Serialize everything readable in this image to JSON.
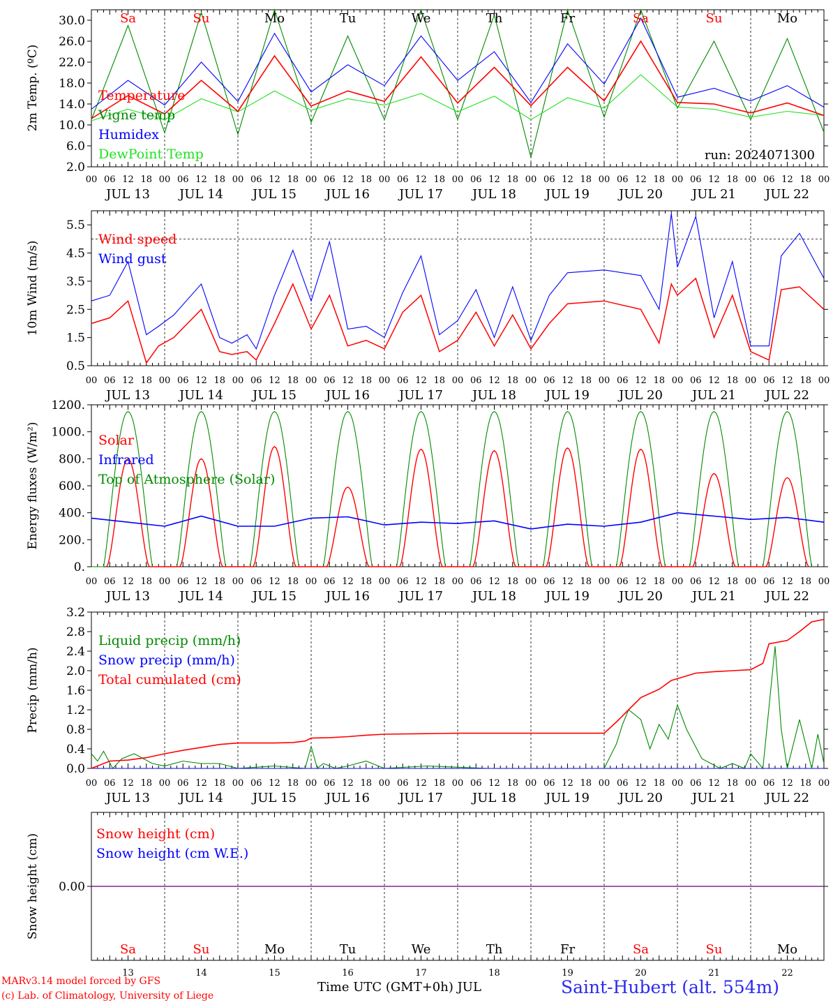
{
  "colors": {
    "temperature": "#ff0000",
    "vigne_temp": "#008a00",
    "humidex": "#0000ff",
    "dewpoint": "#22e022",
    "wind_speed": "#ff0000",
    "wind_gust": "#0000ff",
    "solar": "#ff0000",
    "infrared": "#0000ff",
    "toa_solar": "#008a00",
    "liquid_precip": "#008a00",
    "snow_precip": "#0000ff",
    "total_cumulated": "#ff0000",
    "snow_height": "#ff0000",
    "snow_height_we": "#0000ff",
    "weekend_label": "#ff0000",
    "weekday_label": "#000000",
    "station": "#2a2af0"
  },
  "days": [
    "Sa",
    "Su",
    "Mo",
    "Tu",
    "We",
    "Th",
    "Fr",
    "Sa",
    "Su",
    "Mo"
  ],
  "weekend_flags": [
    true,
    true,
    false,
    false,
    false,
    false,
    false,
    true,
    true,
    false
  ],
  "dates": [
    "JUL 13",
    "JUL 14",
    "JUL 15",
    "JUL 16",
    "JUL 17",
    "JUL 18",
    "JUL 19",
    "JUL 20",
    "JUL 21",
    "JUL 22"
  ],
  "date_numbers": [
    "13",
    "14",
    "15",
    "16",
    "17",
    "18",
    "19",
    "20",
    "21",
    "22"
  ],
  "hour_ticks": [
    "00",
    "06",
    "12",
    "18"
  ],
  "run_label": "run: 2024071300",
  "footer": {
    "credit_line1": "MARv3.14 model forced by GFS",
    "credit_line2": "(c) Lab. of Climatology, University of Liege",
    "x_title": "Time UTC (GMT+0h) JUL",
    "station": "Saint-Hubert (alt. 554m)"
  },
  "chart_data": [
    {
      "type": "line",
      "x_unit": "hours since JUL 13 00 UTC",
      "ylabel": "2m Temp. (ºC)",
      "ylim": [
        2,
        32
      ],
      "yticks": [
        "2.0",
        "6.0",
        "10.0",
        "14.0",
        "18.0",
        "22.0",
        "26.0",
        "30.0"
      ],
      "grid": false,
      "legend": "top-left",
      "series": [
        {
          "name": "Temperature",
          "x": [
            0,
            12,
            24,
            36,
            48,
            60,
            72,
            84,
            96,
            108,
            120,
            132,
            144,
            156,
            168,
            180,
            192,
            204,
            216,
            228,
            240
          ],
          "values": [
            11.2,
            15.6,
            12.1,
            18.5,
            12.6,
            23.2,
            13.6,
            16.5,
            14.5,
            23.0,
            14.2,
            21.0,
            13.7,
            21.0,
            14.6,
            26.0,
            14.3,
            14.0,
            12.3,
            14.2,
            11.8
          ]
        },
        {
          "name": "Vigne temp",
          "x": [
            0,
            12,
            24,
            36,
            48,
            60,
            72,
            84,
            96,
            108,
            120,
            132,
            144,
            156,
            168,
            180,
            192,
            204,
            216,
            228,
            240
          ],
          "values": [
            11.0,
            29.0,
            8.5,
            31.5,
            8.2,
            32.0,
            10.5,
            27.0,
            11.0,
            32.0,
            11.0,
            31.0,
            3.8,
            32.0,
            11.5,
            32.0,
            13.2,
            26.0,
            11.0,
            26.5,
            8.6
          ]
        },
        {
          "name": "Humidex",
          "x": [
            0,
            12,
            24,
            36,
            48,
            60,
            72,
            84,
            96,
            108,
            120,
            132,
            144,
            156,
            168,
            180,
            192,
            204,
            216,
            228,
            240
          ],
          "values": [
            13.0,
            18.5,
            13.8,
            22.0,
            14.5,
            27.5,
            16.3,
            21.5,
            17.5,
            27.0,
            18.5,
            24.0,
            14.3,
            25.5,
            17.8,
            30.4,
            15.3,
            17.0,
            14.6,
            17.5,
            13.4
          ]
        },
        {
          "name": "DewPoint Temp",
          "x": [
            0,
            12,
            24,
            36,
            48,
            60,
            72,
            84,
            96,
            108,
            120,
            132,
            144,
            156,
            168,
            180,
            192,
            204,
            216,
            228,
            240
          ],
          "values": [
            10.8,
            13.0,
            11.0,
            15.0,
            12.5,
            16.5,
            12.8,
            15.0,
            13.8,
            16.0,
            12.5,
            15.5,
            11.0,
            15.2,
            13.2,
            19.6,
            13.4,
            13.0,
            11.5,
            12.6,
            11.8
          ]
        }
      ]
    },
    {
      "type": "line",
      "x_unit": "hours since JUL 13 00 UTC",
      "ylabel": "10m Wind (m/s)",
      "ylim": [
        0.5,
        6.0
      ],
      "yticks": [
        "0.5",
        "1.5",
        "2.5",
        "3.5",
        "4.5",
        "5.5"
      ],
      "reference_line": 5.0,
      "legend": "top-left",
      "series": [
        {
          "name": "Wind speed",
          "x": [
            0,
            6,
            12,
            18,
            22,
            27,
            36,
            42,
            46,
            51,
            54,
            60,
            66,
            72,
            78,
            84,
            90,
            96,
            102,
            108,
            114,
            120,
            126,
            132,
            138,
            144,
            150,
            156,
            168,
            180,
            186,
            190,
            192,
            198,
            204,
            210,
            216,
            222,
            226,
            232,
            240
          ],
          "values": [
            2.0,
            2.2,
            2.8,
            0.6,
            1.2,
            1.5,
            2.5,
            1.0,
            0.9,
            1.0,
            0.7,
            2.0,
            3.4,
            1.8,
            3.0,
            1.2,
            1.4,
            1.1,
            2.4,
            3.0,
            1.0,
            1.4,
            2.4,
            1.2,
            2.3,
            1.1,
            2.0,
            2.7,
            2.8,
            2.5,
            1.3,
            3.4,
            3.0,
            3.6,
            1.5,
            3.0,
            1.0,
            0.7,
            3.2,
            3.3,
            2.5
          ]
        },
        {
          "name": "Wind gust",
          "x": [
            0,
            6,
            12,
            18,
            22,
            27,
            36,
            42,
            46,
            51,
            54,
            60,
            66,
            72,
            78,
            84,
            90,
            96,
            102,
            108,
            114,
            120,
            126,
            132,
            138,
            144,
            150,
            156,
            168,
            180,
            186,
            190,
            192,
            198,
            204,
            210,
            216,
            222,
            226,
            232,
            240
          ],
          "values": [
            2.8,
            3.0,
            4.2,
            1.6,
            1.9,
            2.3,
            3.4,
            1.5,
            1.3,
            1.6,
            1.1,
            3.0,
            4.6,
            2.8,
            4.9,
            1.8,
            1.9,
            1.5,
            3.1,
            4.4,
            1.6,
            2.1,
            3.2,
            1.5,
            3.3,
            1.4,
            3.0,
            3.8,
            3.9,
            3.7,
            2.5,
            5.9,
            4.0,
            5.8,
            2.2,
            4.2,
            1.2,
            1.2,
            4.4,
            5.2,
            3.6
          ]
        }
      ]
    },
    {
      "type": "line",
      "x_unit": "hours since JUL 13 00 UTC",
      "ylabel": "Energy fluxes (W/m²)",
      "ylim": [
        0,
        1200
      ],
      "yticks": [
        "0.",
        "200.",
        "400.",
        "600.",
        "800.",
        "1000.",
        "1200."
      ],
      "legend": "top-left",
      "daily_peak_hour": 12,
      "series": [
        {
          "name": "Solar",
          "daily_peaks": [
            800,
            800,
            890,
            590,
            870,
            860,
            880,
            870,
            690,
            660
          ]
        },
        {
          "name": "Infrared",
          "x": [
            0,
            12,
            24,
            36,
            48,
            60,
            72,
            84,
            96,
            108,
            120,
            132,
            144,
            156,
            168,
            180,
            192,
            204,
            216,
            228,
            240
          ],
          "values": [
            360,
            330,
            300,
            375,
            300,
            300,
            360,
            370,
            310,
            330,
            320,
            340,
            280,
            315,
            300,
            330,
            400,
            375,
            350,
            365,
            330
          ]
        },
        {
          "name": "Top of Atmosphere (Solar)",
          "daily_peaks": [
            1150,
            1150,
            1150,
            1150,
            1150,
            1150,
            1150,
            1150,
            1150,
            1150
          ]
        }
      ]
    },
    {
      "type": "line",
      "x_unit": "hours since JUL 13 00 UTC",
      "ylabel": "Precip (mm/h)",
      "ylim": [
        0,
        3.2
      ],
      "yticks": [
        "0.0",
        "0.4",
        "0.8",
        "1.2",
        "1.6",
        "2.0",
        "2.4",
        "2.8",
        "3.2"
      ],
      "legend": "top-left",
      "series": [
        {
          "name": "Liquid precip (mm/h)",
          "x": [
            0,
            2,
            4,
            7,
            10,
            14,
            20,
            24,
            30,
            36,
            42,
            48,
            60,
            70,
            72,
            74,
            76,
            80,
            84,
            90,
            96,
            110,
            130,
            150,
            168,
            172,
            174,
            176,
            180,
            183,
            186,
            189,
            192,
            195,
            200,
            206,
            210,
            214,
            216,
            220,
            224,
            226,
            228,
            232,
            236,
            238,
            240
          ],
          "values": [
            0.3,
            0.15,
            0.35,
            0.0,
            0.2,
            0.3,
            0.1,
            0.05,
            0.15,
            0.1,
            0.1,
            0.0,
            0.05,
            0.0,
            0.45,
            0.0,
            0.1,
            0.0,
            0.05,
            0.15,
            0.0,
            0.05,
            0.0,
            0.0,
            0.0,
            0.5,
            0.9,
            1.2,
            1.0,
            0.4,
            0.9,
            0.6,
            1.3,
            0.8,
            0.2,
            0.0,
            0.1,
            0.0,
            0.3,
            0.0,
            2.5,
            0.8,
            0.0,
            1.0,
            0.0,
            0.7,
            0.1
          ]
        },
        {
          "name": "Snow precip (mm/h)",
          "x": [
            0,
            240
          ],
          "values": [
            0,
            0
          ]
        },
        {
          "name": "Total cumulated (cm)",
          "x": [
            0,
            6,
            12,
            18,
            24,
            30,
            36,
            42,
            48,
            54,
            60,
            66,
            70,
            72,
            78,
            84,
            90,
            96,
            108,
            120,
            132,
            144,
            156,
            168,
            172,
            176,
            180,
            186,
            190,
            198,
            204,
            210,
            216,
            220,
            222,
            228,
            232,
            236,
            240
          ],
          "values": [
            0.0,
            0.15,
            0.17,
            0.22,
            0.3,
            0.37,
            0.43,
            0.49,
            0.52,
            0.52,
            0.52,
            0.53,
            0.56,
            0.62,
            0.63,
            0.65,
            0.68,
            0.7,
            0.71,
            0.72,
            0.72,
            0.72,
            0.72,
            0.72,
            0.95,
            1.2,
            1.45,
            1.62,
            1.8,
            1.95,
            1.98,
            2.0,
            2.02,
            2.15,
            2.55,
            2.62,
            2.8,
            3.0,
            3.05
          ]
        }
      ]
    },
    {
      "type": "line",
      "x_unit": "hours since JUL 13 00 UTC",
      "ylabel": "Snow height (cm)",
      "yticks": [
        "0.00"
      ],
      "legend": "top-left",
      "series": [
        {
          "name": "Snow height (cm)",
          "x": [
            0,
            240
          ],
          "values": [
            0,
            0
          ]
        },
        {
          "name": "Snow height (cm W.E.)",
          "x": [
            0,
            240
          ],
          "values": [
            0,
            0
          ]
        }
      ]
    }
  ]
}
